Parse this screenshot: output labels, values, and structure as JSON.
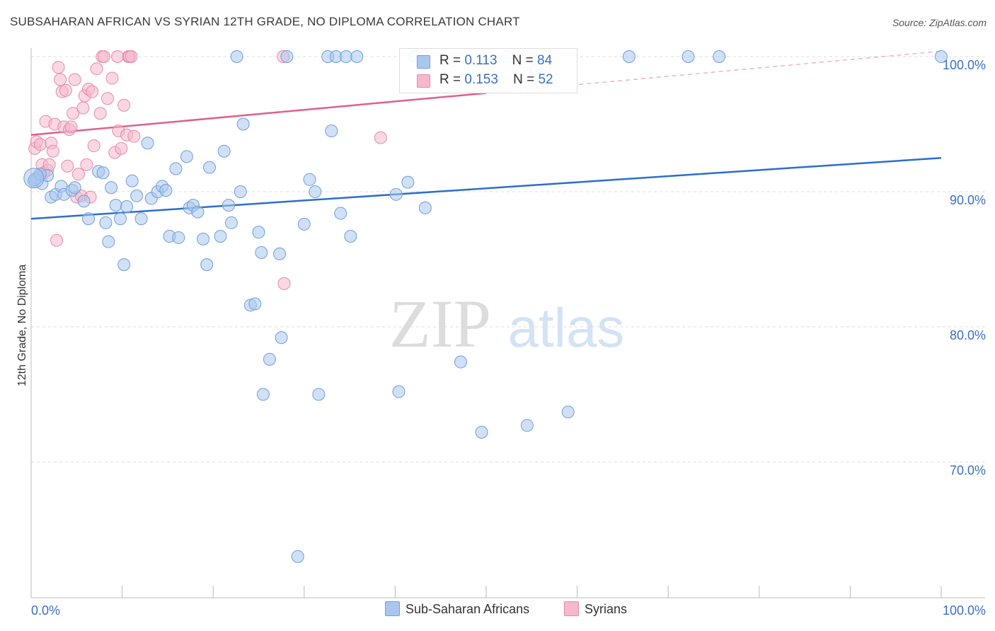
{
  "title": "SUBSAHARAN AFRICAN VS SYRIAN 12TH GRADE, NO DIPLOMA CORRELATION CHART",
  "source": "Source: ZipAtlas.com",
  "watermark": {
    "zip": "ZIP",
    "atlas": "atlas"
  },
  "colors": {
    "blue_fill": "#a9c7ee",
    "blue_stroke": "#6f9fd8",
    "blue_line": "#2a6fcc",
    "pink_fill": "#f6b8cc",
    "pink_stroke": "#e68aa8",
    "pink_line": "#e0608a",
    "axis_text": "#3a6fc4",
    "grid": "#dddddd"
  },
  "legend": {
    "rows": [
      {
        "r_label": "R =",
        "r_value": "0.113",
        "n_label": "N =",
        "n_value": "84"
      },
      {
        "r_label": "R =",
        "r_value": "0.153",
        "n_label": "N =",
        "n_value": "52"
      }
    ],
    "bottom": [
      "Sub-Saharan Africans",
      "Syrians"
    ]
  },
  "chart_data": {
    "type": "scatter",
    "title": "SUBSAHARAN AFRICAN VS SYRIAN 12TH GRADE, NO DIPLOMA CORRELATION CHART",
    "xlabel": "",
    "ylabel": "12th Grade, No Diploma",
    "xlim": [
      0,
      100
    ],
    "ylim": [
      60,
      100.5
    ],
    "x_tick_labels": [
      "0.0%",
      "100.0%"
    ],
    "y_ticks": [
      70,
      80,
      90,
      100
    ],
    "y_tick_labels": [
      "70.0%",
      "80.0%",
      "90.0%",
      "100.0%"
    ],
    "grid": true,
    "legend_position": "top-center",
    "series": [
      {
        "name": "Sub-Saharan Africans",
        "color": "#a9c7ee",
        "trend": {
          "x": [
            0,
            100
          ],
          "y": [
            88.0,
            92.5
          ]
        },
        "points": [
          [
            0.3,
            90.8
          ],
          [
            0.6,
            91.0
          ],
          [
            1.2,
            90.6
          ],
          [
            1.8,
            91.2
          ],
          [
            2.2,
            89.6
          ],
          [
            2.7,
            89.8
          ],
          [
            3.3,
            90.4
          ],
          [
            3.6,
            89.8
          ],
          [
            4.5,
            90.1
          ],
          [
            4.8,
            90.3
          ],
          [
            5.8,
            89.3
          ],
          [
            6.3,
            88.0
          ],
          [
            7.4,
            91.5
          ],
          [
            7.9,
            91.4
          ],
          [
            8.2,
            87.7
          ],
          [
            8.5,
            86.3
          ],
          [
            8.8,
            90.3
          ],
          [
            9.3,
            89.0
          ],
          [
            9.8,
            88.0
          ],
          [
            10.2,
            84.6
          ],
          [
            10.5,
            88.9
          ],
          [
            11.1,
            90.8
          ],
          [
            11.6,
            89.7
          ],
          [
            12.1,
            88.0
          ],
          [
            12.8,
            93.6
          ],
          [
            13.2,
            89.5
          ],
          [
            13.9,
            90.0
          ],
          [
            14.4,
            90.4
          ],
          [
            14.8,
            90.1
          ],
          [
            15.2,
            86.7
          ],
          [
            15.9,
            91.7
          ],
          [
            16.2,
            86.6
          ],
          [
            17.1,
            92.6
          ],
          [
            17.4,
            88.8
          ],
          [
            17.8,
            89.0
          ],
          [
            18.3,
            88.5
          ],
          [
            18.9,
            86.5
          ],
          [
            19.3,
            84.6
          ],
          [
            19.6,
            91.8
          ],
          [
            20.8,
            86.7
          ],
          [
            21.2,
            93.0
          ],
          [
            21.7,
            89.0
          ],
          [
            22.0,
            87.7
          ],
          [
            22.6,
            100.0
          ],
          [
            23.0,
            90.0
          ],
          [
            23.3,
            95.0
          ],
          [
            24.1,
            81.6
          ],
          [
            24.6,
            81.7
          ],
          [
            25.0,
            87.0
          ],
          [
            25.3,
            85.5
          ],
          [
            25.5,
            75.0
          ],
          [
            26.2,
            77.6
          ],
          [
            27.3,
            85.4
          ],
          [
            27.5,
            79.2
          ],
          [
            28.1,
            100.0
          ],
          [
            29.3,
            63.0
          ],
          [
            30.0,
            87.6
          ],
          [
            30.6,
            90.9
          ],
          [
            31.2,
            90.0
          ],
          [
            31.6,
            75.0
          ],
          [
            32.6,
            100.0
          ],
          [
            33.0,
            94.5
          ],
          [
            33.5,
            100.0
          ],
          [
            34.0,
            88.4
          ],
          [
            34.6,
            100.0
          ],
          [
            35.1,
            86.7
          ],
          [
            35.8,
            100.0
          ],
          [
            40.1,
            89.8
          ],
          [
            40.4,
            75.2
          ],
          [
            41.4,
            90.7
          ],
          [
            42.1,
            100.0
          ],
          [
            43.3,
            88.8
          ],
          [
            47.2,
            77.4
          ],
          [
            49.5,
            72.2
          ],
          [
            52.3,
            100.0
          ],
          [
            54.5,
            72.7
          ],
          [
            55.5,
            99.0
          ],
          [
            59.0,
            73.7
          ],
          [
            65.7,
            100.0
          ],
          [
            72.2,
            100.0
          ],
          [
            75.6,
            100.0
          ],
          [
            100.0,
            100.0
          ],
          [
            0.4,
            90.9
          ],
          [
            1.0,
            91.3
          ]
        ]
      },
      {
        "name": "Syrians",
        "color": "#f6b8cc",
        "trend": {
          "x": [
            0,
            50
          ],
          "y": [
            94.2,
            97.3
          ]
        },
        "trend_dashed": {
          "x": [
            50,
            100
          ],
          "y": [
            97.3,
            100.4
          ]
        },
        "points": [
          [
            0.4,
            93.2
          ],
          [
            0.6,
            93.7
          ],
          [
            0.8,
            91.1
          ],
          [
            1.0,
            93.5
          ],
          [
            1.2,
            92.0
          ],
          [
            1.4,
            91.4
          ],
          [
            1.6,
            95.2
          ],
          [
            1.8,
            91.6
          ],
          [
            2.0,
            92.0
          ],
          [
            2.2,
            93.6
          ],
          [
            2.4,
            93.0
          ],
          [
            2.6,
            95.0
          ],
          [
            2.8,
            86.4
          ],
          [
            3.0,
            99.2
          ],
          [
            3.2,
            98.3
          ],
          [
            3.4,
            97.4
          ],
          [
            3.6,
            94.8
          ],
          [
            3.8,
            97.5
          ],
          [
            4.0,
            91.9
          ],
          [
            4.2,
            94.6
          ],
          [
            4.4,
            94.8
          ],
          [
            4.6,
            95.8
          ],
          [
            4.8,
            98.3
          ],
          [
            5.0,
            89.6
          ],
          [
            5.2,
            91.3
          ],
          [
            5.5,
            89.7
          ],
          [
            5.7,
            96.2
          ],
          [
            5.9,
            97.1
          ],
          [
            6.1,
            92.0
          ],
          [
            6.3,
            97.6
          ],
          [
            6.5,
            89.6
          ],
          [
            6.7,
            97.4
          ],
          [
            6.9,
            93.4
          ],
          [
            7.2,
            99.1
          ],
          [
            7.6,
            95.8
          ],
          [
            7.8,
            100.0
          ],
          [
            8.0,
            100.0
          ],
          [
            8.4,
            96.9
          ],
          [
            8.9,
            98.4
          ],
          [
            9.2,
            92.9
          ],
          [
            9.5,
            100.0
          ],
          [
            9.6,
            94.5
          ],
          [
            9.9,
            93.2
          ],
          [
            10.2,
            96.4
          ],
          [
            10.5,
            94.2
          ],
          [
            10.7,
            100.0
          ],
          [
            10.8,
            100.0
          ],
          [
            11.0,
            100.0
          ],
          [
            11.3,
            94.1
          ],
          [
            27.7,
            100.0
          ],
          [
            27.8,
            83.2
          ],
          [
            38.4,
            94.0
          ]
        ]
      }
    ]
  }
}
